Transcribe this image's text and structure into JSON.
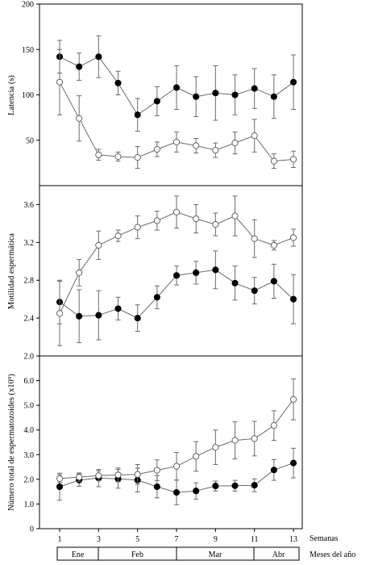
{
  "x_axis": {
    "label": "Semanas",
    "ticks": [
      "1",
      "3",
      "5",
      "7",
      "9",
      "11",
      "13"
    ],
    "months_label": "Meses del año",
    "months": [
      {
        "name": "Ene",
        "from": 0.5,
        "to": 3
      },
      {
        "name": "Feb",
        "from": 3,
        "to": 7
      },
      {
        "name": "Mar",
        "from": 7,
        "to": 11
      },
      {
        "name": "Abr",
        "from": 11,
        "to": 13.5
      }
    ]
  },
  "chart_data": [
    {
      "type": "line",
      "ylabel": "Latencia (s)",
      "ylim": [
        0,
        200
      ],
      "yticks": [
        "50",
        "100",
        "150",
        "200"
      ],
      "x": [
        1,
        2,
        3,
        4,
        5,
        6,
        7,
        8,
        9,
        10,
        11,
        12,
        13
      ],
      "series": [
        {
          "marker": "filled",
          "values": [
            142,
            131,
            142,
            113,
            78,
            93,
            108,
            98,
            102,
            100,
            107,
            98,
            114
          ],
          "errors": [
            18,
            15,
            23,
            13,
            18,
            16,
            24,
            22,
            30,
            22,
            22,
            24,
            30
          ]
        },
        {
          "marker": "open",
          "values": [
            114,
            74,
            34,
            32,
            31,
            40,
            48,
            44,
            39,
            47,
            55,
            27,
            29
          ],
          "errors": [
            36,
            25,
            6,
            5,
            12,
            8,
            11,
            8,
            8,
            12,
            18,
            8,
            9
          ]
        }
      ]
    },
    {
      "type": "line",
      "ylabel": "Motilidad espermática",
      "ylim": [
        2.0,
        3.8
      ],
      "yticks": [
        "2.0",
        "2.4",
        "2.8",
        "3.2",
        "3.6"
      ],
      "x": [
        1,
        2,
        3,
        4,
        5,
        6,
        7,
        8,
        9,
        10,
        11,
        12,
        13
      ],
      "series": [
        {
          "marker": "filled",
          "values": [
            2.57,
            2.42,
            2.43,
            2.5,
            2.4,
            2.62,
            2.85,
            2.88,
            2.91,
            2.77,
            2.69,
            2.79,
            2.6
          ],
          "errors": [
            0.23,
            0.28,
            0.26,
            0.12,
            0.14,
            0.12,
            0.1,
            0.12,
            0.2,
            0.18,
            0.14,
            0.18,
            0.26
          ]
        },
        {
          "marker": "open",
          "values": [
            2.45,
            2.88,
            3.17,
            3.27,
            3.36,
            3.43,
            3.52,
            3.45,
            3.39,
            3.48,
            3.24,
            3.17,
            3.25
          ],
          "errors": [
            0.34,
            0.14,
            0.15,
            0.06,
            0.12,
            0.1,
            0.17,
            0.15,
            0.12,
            0.21,
            0.2,
            0.05,
            0.09
          ]
        }
      ]
    },
    {
      "type": "line",
      "ylabel": "Número total de espermatozoides (x10⁹)",
      "ylim": [
        0,
        7
      ],
      "yticks": [
        "0",
        "1.0",
        "2.0",
        "3.0",
        "4.0",
        "5.0",
        "6.0"
      ],
      "x": [
        1,
        2,
        3,
        4,
        5,
        6,
        7,
        8,
        9,
        10,
        11,
        12,
        13
      ],
      "series": [
        {
          "marker": "filled",
          "values": [
            1.7,
            1.97,
            2.05,
            2.02,
            1.97,
            1.7,
            1.47,
            1.53,
            1.73,
            1.74,
            1.76,
            2.38,
            2.66
          ],
          "errors": [
            0.55,
            0.25,
            0.35,
            0.38,
            0.48,
            0.45,
            0.5,
            0.33,
            0.2,
            0.22,
            0.26,
            0.42,
            0.6
          ]
        },
        {
          "marker": "open",
          "values": [
            2.03,
            2.09,
            2.15,
            2.18,
            2.2,
            2.37,
            2.53,
            2.93,
            3.3,
            3.58,
            3.65,
            4.18,
            5.24
          ],
          "errors": [
            0.16,
            0.17,
            0.2,
            0.28,
            0.4,
            0.42,
            0.56,
            0.6,
            0.7,
            0.75,
            0.7,
            0.6,
            0.83
          ]
        }
      ]
    }
  ]
}
